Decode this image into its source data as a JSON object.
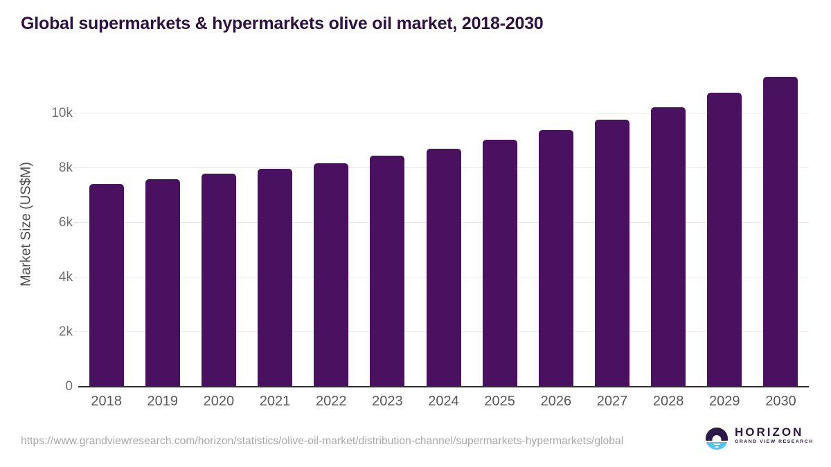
{
  "page": {
    "source_url": "https://www.grandviewresearch.com/horizon/statistics/olive-oil-market/distribution-channel/supermarkets-hypermarkets/global"
  },
  "logo": {
    "brand": "HORIZON",
    "tagline": "GRAND VIEW RESEARCH"
  },
  "chart_data": {
    "type": "bar",
    "title": "Global supermarkets & hypermarkets olive oil market, 2018-2030",
    "ylabel": "Market Size (US$M)",
    "xlabel": "",
    "unit": "US$M",
    "categories": [
      "2018",
      "2019",
      "2020",
      "2021",
      "2022",
      "2023",
      "2024",
      "2025",
      "2026",
      "2027",
      "2028",
      "2029",
      "2030"
    ],
    "values": [
      7410,
      7600,
      7790,
      7980,
      8190,
      8450,
      8710,
      9040,
      9400,
      9780,
      10220,
      10760,
      11340
    ],
    "yticks": [
      {
        "value": 0,
        "label": "0"
      },
      {
        "value": 2000,
        "label": "2k"
      },
      {
        "value": 4000,
        "label": "4k"
      },
      {
        "value": 6000,
        "label": "6k"
      },
      {
        "value": 8000,
        "label": "8k"
      },
      {
        "value": 10000,
        "label": "10k"
      }
    ],
    "ylim": [
      0,
      11620
    ],
    "grid": true,
    "legend": false,
    "bar_color": "#491160",
    "colors": {
      "title": "#2f1040",
      "gridline": "#eaeaea",
      "axis_line": "#2f2f2f",
      "tick_text": "#6f6f6f",
      "year_text": "#585858",
      "url_text": "#a7a7a7",
      "logo_purple": "#2c1947",
      "logo_blue": "#56c3ee"
    }
  }
}
